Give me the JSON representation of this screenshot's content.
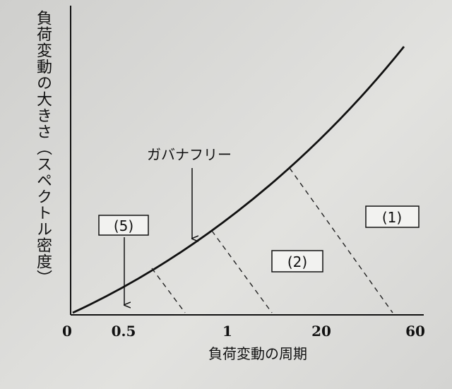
{
  "y_axis": {
    "title": "負荷変動の大きさ（スペクトル密度）"
  },
  "x_axis": {
    "title": "負荷変動の周期",
    "ticks": [
      "0",
      "0.5",
      "1",
      "20",
      "60"
    ]
  },
  "annotations": {
    "governor_free": "ガバナフリー",
    "box_5": "(5)",
    "box_2": "(2)",
    "box_1": "(1)"
  }
}
